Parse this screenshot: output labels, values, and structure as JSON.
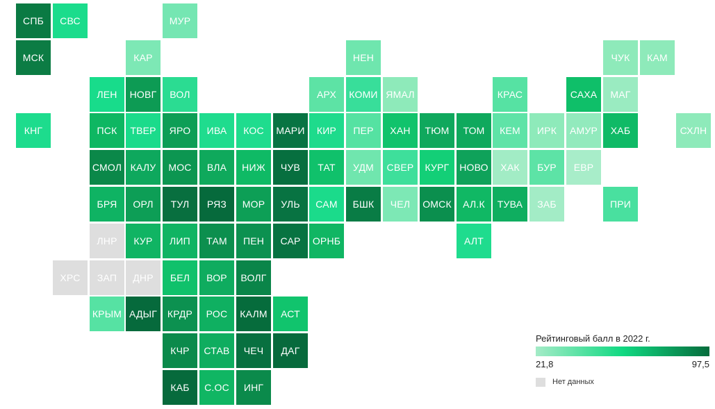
{
  "colors": {
    "scale_min": "#a4ebc7",
    "scale_mid": "#11d982",
    "scale_max": "#066c3c",
    "no_data": "#dedede"
  },
  "legend": {
    "title": "Рейтинговый балл в 2022 г.",
    "min_label": "21,8",
    "max_label": "97,5",
    "no_data_label": "Нет данных"
  },
  "regions": [
    {
      "label": "СПБ",
      "row": 0,
      "col": 0,
      "color": "#0a7a43"
    },
    {
      "label": "СВС",
      "row": 0,
      "col": 1,
      "color": "#1bdc8c"
    },
    {
      "label": "МУР",
      "row": 0,
      "col": 4,
      "color": "#75e6b2"
    },
    {
      "label": "МСК",
      "row": 1,
      "col": 0,
      "color": "#0c7c44"
    },
    {
      "label": "КАР",
      "row": 1,
      "col": 3,
      "color": "#7de8b5"
    },
    {
      "label": "НЕН",
      "row": 1,
      "col": 9,
      "color": "#6fe6ae"
    },
    {
      "label": "ЧУК",
      "row": 1,
      "col": 16,
      "color": "#8eeaba"
    },
    {
      "label": "КАМ",
      "row": 1,
      "col": 17,
      "color": "#8eeaba"
    },
    {
      "label": "ЛЕН",
      "row": 2,
      "col": 2,
      "color": "#18dc8b"
    },
    {
      "label": "НОВГ",
      "row": 2,
      "col": 3,
      "color": "#0d9b54"
    },
    {
      "label": "ВОЛ",
      "row": 2,
      "col": 4,
      "color": "#2bdc92"
    },
    {
      "label": "АРХ",
      "row": 2,
      "col": 8,
      "color": "#5de3a5"
    },
    {
      "label": "КОМИ",
      "row": 2,
      "col": 9,
      "color": "#38de9a"
    },
    {
      "label": "ЯМАЛ",
      "row": 2,
      "col": 10,
      "color": "#8eeaba"
    },
    {
      "label": "КРАС",
      "row": 2,
      "col": 13,
      "color": "#56e2a3"
    },
    {
      "label": "САХА",
      "row": 2,
      "col": 15,
      "color": "#0fbf69"
    },
    {
      "label": "МАГ",
      "row": 2,
      "col": 16,
      "color": "#9aebc1"
    },
    {
      "label": "КНГ",
      "row": 3,
      "col": 0,
      "color": "#1ddc8d"
    },
    {
      "label": "ПСК",
      "row": 3,
      "col": 2,
      "color": "#0eb762"
    },
    {
      "label": "ТВЕР",
      "row": 3,
      "col": 3,
      "color": "#1bdb8b"
    },
    {
      "label": "ЯРО",
      "row": 3,
      "col": 4,
      "color": "#0d9e56"
    },
    {
      "label": "ИВА",
      "row": 3,
      "col": 5,
      "color": "#1fdc8e"
    },
    {
      "label": "КОС",
      "row": 3,
      "col": 6,
      "color": "#1fdc8e"
    },
    {
      "label": "МАРИ",
      "row": 3,
      "col": 7,
      "color": "#087443"
    },
    {
      "label": "КИР",
      "row": 3,
      "col": 8,
      "color": "#1edb8c"
    },
    {
      "label": "ПЕР",
      "row": 3,
      "col": 9,
      "color": "#55e2a2"
    },
    {
      "label": "ХАН",
      "row": 3,
      "col": 10,
      "color": "#11c36c"
    },
    {
      "label": "ТЮМ",
      "row": 3,
      "col": 11,
      "color": "#10a85d"
    },
    {
      "label": "ТОМ",
      "row": 3,
      "col": 12,
      "color": "#0fa95d"
    },
    {
      "label": "КЕМ",
      "row": 3,
      "col": 13,
      "color": "#5fe3a7"
    },
    {
      "label": "ИРК",
      "row": 3,
      "col": 14,
      "color": "#8eeaba"
    },
    {
      "label": "АМУР",
      "row": 3,
      "col": 15,
      "color": "#92eabd"
    },
    {
      "label": "ХАБ",
      "row": 3,
      "col": 16,
      "color": "#0fba66"
    },
    {
      "label": "СХЛН",
      "row": 3,
      "col": 18,
      "color": "#8eeaba"
    },
    {
      "label": "СМОЛ",
      "row": 4,
      "col": 2,
      "color": "#0b8849"
    },
    {
      "label": "КАЛУ",
      "row": 4,
      "col": 3,
      "color": "#0ea85d"
    },
    {
      "label": "МОС",
      "row": 4,
      "col": 4,
      "color": "#0c9651"
    },
    {
      "label": "ВЛА",
      "row": 4,
      "col": 5,
      "color": "#0fa95c"
    },
    {
      "label": "НИЖ",
      "row": 4,
      "col": 6,
      "color": "#0fba65"
    },
    {
      "label": "ЧУВ",
      "row": 4,
      "col": 7,
      "color": "#076f3f"
    },
    {
      "label": "ТАТ",
      "row": 4,
      "col": 8,
      "color": "#10c16b"
    },
    {
      "label": "УДМ",
      "row": 4,
      "col": 9,
      "color": "#70e6ae"
    },
    {
      "label": "СВЕР",
      "row": 4,
      "col": 10,
      "color": "#3edf9b"
    },
    {
      "label": "КУРГ",
      "row": 4,
      "col": 11,
      "color": "#13cf77"
    },
    {
      "label": "НОВО",
      "row": 4,
      "col": 12,
      "color": "#0fa25a"
    },
    {
      "label": "ХАК",
      "row": 4,
      "col": 13,
      "color": "#a2ecc5"
    },
    {
      "label": "БУР",
      "row": 4,
      "col": 14,
      "color": "#5de3a6"
    },
    {
      "label": "ЕВР",
      "row": 4,
      "col": 15,
      "color": "#a8edc9"
    },
    {
      "label": "БРЯ",
      "row": 5,
      "col": 2,
      "color": "#0fb363"
    },
    {
      "label": "ОРЛ",
      "row": 5,
      "col": 3,
      "color": "#0d9e56"
    },
    {
      "label": "ТУЛ",
      "row": 5,
      "col": 4,
      "color": "#086f3f"
    },
    {
      "label": "РЯЗ",
      "row": 5,
      "col": 5,
      "color": "#066a3c"
    },
    {
      "label": "МОР",
      "row": 5,
      "col": 6,
      "color": "#0d9f56"
    },
    {
      "label": "УЛЬ",
      "row": 5,
      "col": 7,
      "color": "#087342"
    },
    {
      "label": "САМ",
      "row": 5,
      "col": 8,
      "color": "#1bdb8b"
    },
    {
      "label": "БШК",
      "row": 5,
      "col": 9,
      "color": "#097c45"
    },
    {
      "label": "ЧЕЛ",
      "row": 5,
      "col": 10,
      "color": "#7de8b5"
    },
    {
      "label": "ОМСК",
      "row": 5,
      "col": 11,
      "color": "#0b8f4e"
    },
    {
      "label": "АЛ.К",
      "row": 5,
      "col": 12,
      "color": "#10b864"
    },
    {
      "label": "ТУВА",
      "row": 5,
      "col": 13,
      "color": "#0fae60"
    },
    {
      "label": "ЗАБ",
      "row": 5,
      "col": 14,
      "color": "#a3ecc6"
    },
    {
      "label": "ПРИ",
      "row": 5,
      "col": 16,
      "color": "#49e09f"
    },
    {
      "label": "ЛНР",
      "row": 6,
      "col": 2,
      "color": "#dedede"
    },
    {
      "label": "КУР",
      "row": 6,
      "col": 3,
      "color": "#10b463"
    },
    {
      "label": "ЛИП",
      "row": 6,
      "col": 4,
      "color": "#10b463"
    },
    {
      "label": "ТАМ",
      "row": 6,
      "col": 5,
      "color": "#0c8f4e"
    },
    {
      "label": "ПЕН",
      "row": 6,
      "col": 6,
      "color": "#0c9150"
    },
    {
      "label": "САР",
      "row": 6,
      "col": 7,
      "color": "#077341"
    },
    {
      "label": "ОРНБ",
      "row": 6,
      "col": 8,
      "color": "#10b663"
    },
    {
      "label": "АЛТ",
      "row": 6,
      "col": 12,
      "color": "#1fdc8e"
    },
    {
      "label": "ХРС",
      "row": 7,
      "col": 1,
      "color": "#dedede"
    },
    {
      "label": "ЗАП",
      "row": 7,
      "col": 2,
      "color": "#dedede"
    },
    {
      "label": "ДНР",
      "row": 7,
      "col": 3,
      "color": "#dedede"
    },
    {
      "label": "БЕЛ",
      "row": 7,
      "col": 4,
      "color": "#10c16b"
    },
    {
      "label": "ВОР",
      "row": 7,
      "col": 5,
      "color": "#0fac5f"
    },
    {
      "label": "ВОЛГ",
      "row": 7,
      "col": 6,
      "color": "#0a8549"
    },
    {
      "label": "КРЫМ",
      "row": 8,
      "col": 2,
      "color": "#56e2a3"
    },
    {
      "label": "АДЫГ",
      "row": 8,
      "col": 3,
      "color": "#066a3c"
    },
    {
      "label": "КРДР",
      "row": 8,
      "col": 4,
      "color": "#0c9150"
    },
    {
      "label": "РОС",
      "row": 8,
      "col": 5,
      "color": "#0fb061"
    },
    {
      "label": "КАЛМ",
      "row": 8,
      "col": 6,
      "color": "#066c3c"
    },
    {
      "label": "АСТ",
      "row": 8,
      "col": 7,
      "color": "#11c46d"
    },
    {
      "label": "КЧР",
      "row": 9,
      "col": 4,
      "color": "#0b8a4b"
    },
    {
      "label": "СТАВ",
      "row": 9,
      "col": 5,
      "color": "#0fad5f"
    },
    {
      "label": "ЧЕЧ",
      "row": 9,
      "col": 6,
      "color": "#087040"
    },
    {
      "label": "ДАГ",
      "row": 9,
      "col": 7,
      "color": "#076a3c"
    },
    {
      "label": "КАБ",
      "row": 10,
      "col": 4,
      "color": "#076a3c"
    },
    {
      "label": "С.ОС",
      "row": 10,
      "col": 5,
      "color": "#10b663"
    },
    {
      "label": "ИНГ",
      "row": 10,
      "col": 6,
      "color": "#0b8a4b"
    }
  ]
}
